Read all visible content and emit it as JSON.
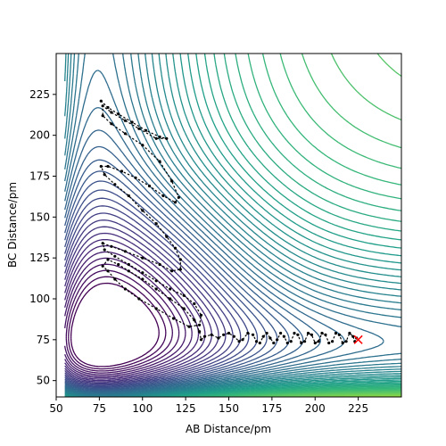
{
  "chart_data": {
    "type": "contour",
    "title": "",
    "xlabel": "AB Distance/pm",
    "ylabel": "BC Distance/pm",
    "xlim": [
      50,
      250
    ],
    "ylim": [
      40,
      250
    ],
    "x_ticks": [
      50,
      75,
      100,
      125,
      150,
      175,
      200,
      225
    ],
    "y_ticks": [
      50,
      75,
      100,
      125,
      150,
      175,
      200,
      225
    ],
    "x_tick_labels": [
      "50",
      "75",
      "100",
      "125",
      "150",
      "175",
      "200",
      "225"
    ],
    "y_tick_labels": [
      "50",
      "75",
      "100",
      "125",
      "150",
      "175",
      "200",
      "225"
    ],
    "colormap": [
      "#440154",
      "#482878",
      "#3e4989",
      "#31688e",
      "#26828e",
      "#1f9e89",
      "#35b779",
      "#6ece58",
      "#b5de2b",
      "#fde725"
    ],
    "grid": false,
    "legend": "none",
    "trajectory": {
      "color": "#000000",
      "points": [
        [
          76,
          221
        ],
        [
          80,
          217
        ],
        [
          86,
          213
        ],
        [
          94,
          208
        ],
        [
          102,
          203
        ],
        [
          110,
          199
        ],
        [
          114,
          198
        ],
        [
          108,
          198
        ],
        [
          98,
          204
        ],
        [
          90,
          209
        ],
        [
          82,
          214
        ],
        [
          77,
          218
        ],
        [
          77,
          212
        ],
        [
          82,
          207
        ],
        [
          90,
          201
        ],
        [
          100,
          194
        ],
        [
          110,
          184
        ],
        [
          117,
          172
        ],
        [
          121,
          162
        ],
        [
          119,
          159
        ],
        [
          112,
          163
        ],
        [
          104,
          169
        ],
        [
          96,
          174
        ],
        [
          88,
          178
        ],
        [
          80,
          181
        ],
        [
          76,
          181
        ],
        [
          78,
          176
        ],
        [
          84,
          170
        ],
        [
          92,
          163
        ],
        [
          100,
          154
        ],
        [
          108,
          146
        ],
        [
          114,
          138
        ],
        [
          119,
          131
        ],
        [
          122,
          124
        ],
        [
          122,
          118
        ],
        [
          117,
          117
        ],
        [
          110,
          121
        ],
        [
          100,
          125
        ],
        [
          90,
          129
        ],
        [
          82,
          132
        ],
        [
          77,
          134
        ],
        [
          78,
          130
        ],
        [
          84,
          126
        ],
        [
          92,
          121
        ],
        [
          100,
          116
        ],
        [
          108,
          111
        ],
        [
          116,
          106
        ],
        [
          124,
          102
        ],
        [
          130,
          97
        ],
        [
          134,
          90
        ],
        [
          133,
          84
        ],
        [
          127,
          83
        ],
        [
          118,
          88
        ],
        [
          108,
          94
        ],
        [
          98,
          100
        ],
        [
          90,
          106
        ],
        [
          84,
          112
        ],
        [
          80,
          117
        ],
        [
          77,
          120
        ],
        [
          80,
          124
        ],
        [
          86,
          121
        ],
        [
          92,
          117
        ],
        [
          100,
          112
        ],
        [
          108,
          106
        ],
        [
          116,
          100
        ],
        [
          124,
          94
        ],
        [
          130,
          87
        ],
        [
          133,
          80
        ],
        [
          134,
          75
        ],
        [
          136,
          77
        ],
        [
          140,
          78
        ],
        [
          144,
          76
        ],
        [
          147,
          78
        ],
        [
          150,
          79
        ],
        [
          153,
          77
        ],
        [
          156,
          74
        ],
        [
          158,
          75
        ],
        [
          161,
          79
        ],
        [
          164,
          78
        ],
        [
          166,
          74
        ],
        [
          168,
          73
        ],
        [
          170,
          77
        ],
        [
          172,
          79
        ],
        [
          174,
          76
        ],
        [
          176,
          73
        ],
        [
          178,
          75
        ],
        [
          180,
          79
        ],
        [
          182,
          77
        ],
        [
          184,
          73
        ],
        [
          186,
          74
        ],
        [
          188,
          79
        ],
        [
          190,
          78
        ],
        [
          192,
          73
        ],
        [
          194,
          74
        ],
        [
          196,
          79
        ],
        [
          198,
          78
        ],
        [
          200,
          73
        ],
        [
          202,
          74
        ],
        [
          204,
          79
        ],
        [
          206,
          78
        ],
        [
          208,
          73
        ],
        [
          210,
          74
        ],
        [
          212,
          79
        ],
        [
          214,
          78
        ],
        [
          216,
          73
        ],
        [
          218,
          74
        ],
        [
          220,
          79
        ],
        [
          222,
          77
        ],
        [
          223,
          74
        ],
        [
          224,
          76
        ]
      ]
    },
    "marker": {
      "x": 225,
      "y": 75,
      "symbol": "x",
      "color": "#ff0000"
    }
  }
}
